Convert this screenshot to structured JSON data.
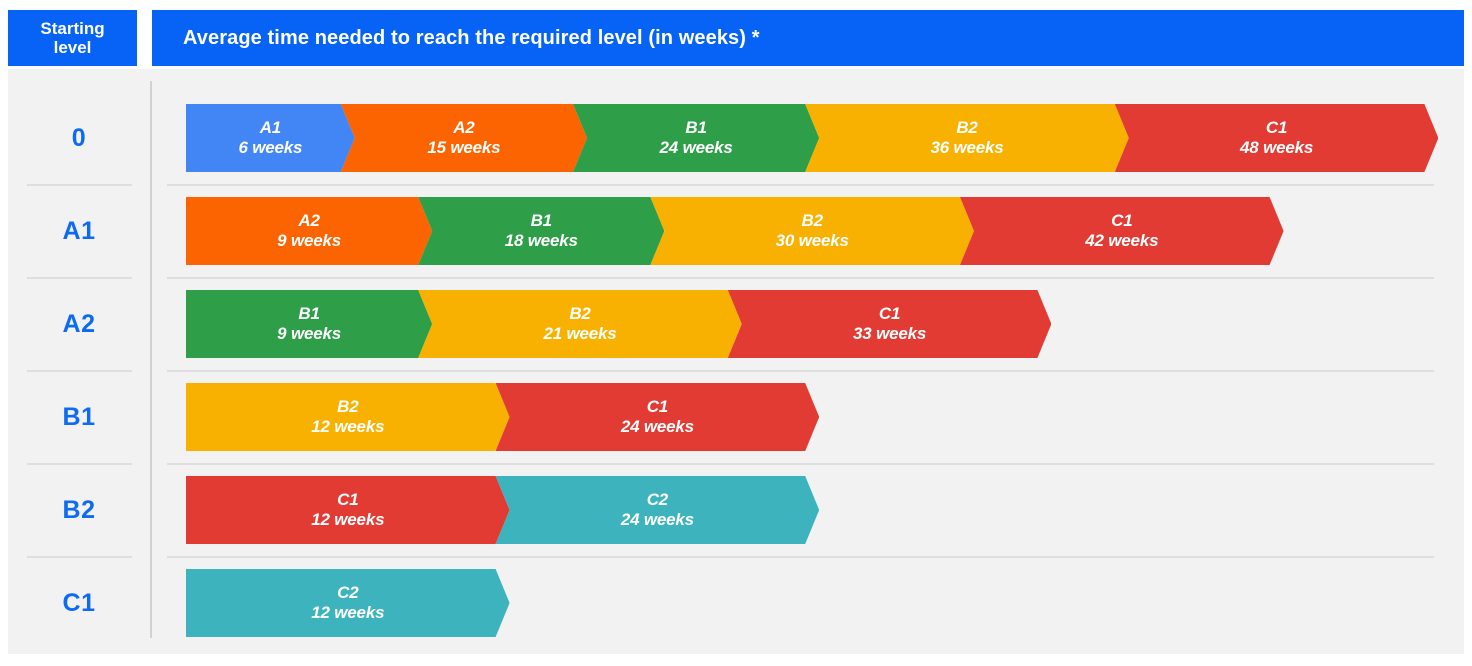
{
  "header": {
    "starting_level_label": "Starting level",
    "title": "Average time needed to reach the required level (in weeks) *"
  },
  "colors": {
    "header_blue": "#0663f5",
    "label_blue": "#0d6af2",
    "background_gray": "#f2f2f2",
    "separator_gray": "#dedede"
  },
  "chart_data": {
    "type": "bar",
    "variant": "horizontal-chevron-progression",
    "title": "Average time needed to reach the required level (in weeks) *",
    "row_header": "Starting level",
    "categories": [
      "0",
      "A1",
      "A2",
      "B1",
      "B2",
      "C1"
    ],
    "unit_label": "weeks",
    "values_are_cumulative_weeks": true,
    "xlim_weeks": [
      0,
      48
    ],
    "grid": false,
    "legend": false,
    "colors_by_level": {
      "A1": "#4285f4",
      "A2": "#fb6400",
      "B1": "#2f9e49",
      "B2": "#f8b100",
      "C1": "#e23b33",
      "C2": "#3db4bd"
    },
    "rows": [
      {
        "starting_level": "0",
        "segments": [
          {
            "level": "A1",
            "weeks": 6
          },
          {
            "level": "A2",
            "weeks": 15
          },
          {
            "level": "B1",
            "weeks": 24
          },
          {
            "level": "B2",
            "weeks": 36
          },
          {
            "level": "C1",
            "weeks": 48
          }
        ]
      },
      {
        "starting_level": "A1",
        "segments": [
          {
            "level": "A2",
            "weeks": 9
          },
          {
            "level": "B1",
            "weeks": 18
          },
          {
            "level": "B2",
            "weeks": 30
          },
          {
            "level": "C1",
            "weeks": 42
          }
        ]
      },
      {
        "starting_level": "A2",
        "segments": [
          {
            "level": "B1",
            "weeks": 9
          },
          {
            "level": "B2",
            "weeks": 21
          },
          {
            "level": "C1",
            "weeks": 33
          }
        ]
      },
      {
        "starting_level": "B1",
        "segments": [
          {
            "level": "B2",
            "weeks": 12
          },
          {
            "level": "C1",
            "weeks": 24
          }
        ]
      },
      {
        "starting_level": "B2",
        "segments": [
          {
            "level": "C1",
            "weeks": 12
          },
          {
            "level": "C2",
            "weeks": 24
          }
        ]
      },
      {
        "starting_level": "C1",
        "segments": [
          {
            "level": "C2",
            "weeks": 12
          }
        ]
      }
    ]
  }
}
